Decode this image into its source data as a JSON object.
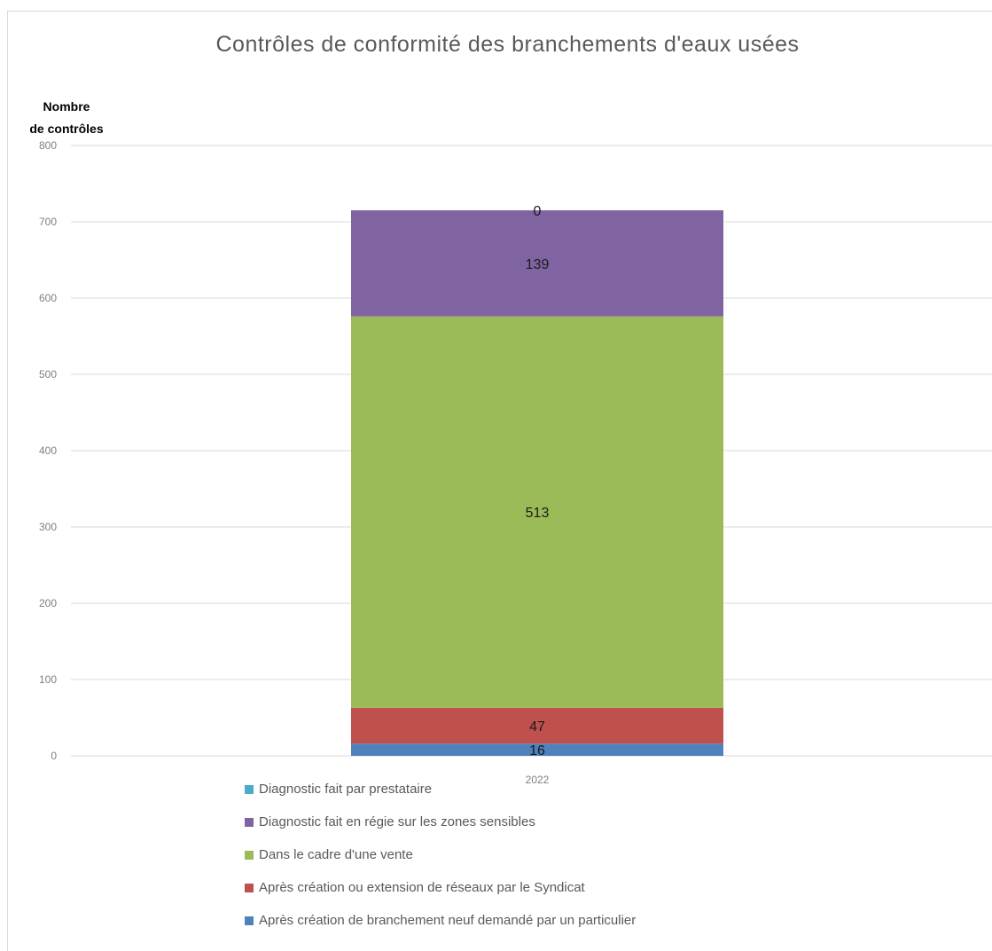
{
  "chart_data": {
    "type": "bar",
    "stacked": true,
    "title": "Contrôles de conformité des branchements d'eaux usées",
    "ylabel": "Nombre\nde contrôles",
    "xlabel": "",
    "categories": [
      "2022"
    ],
    "ylim": [
      0,
      800
    ],
    "yticks": [
      0,
      100,
      200,
      300,
      400,
      500,
      600,
      700,
      800
    ],
    "grid": true,
    "legend_position": "bottom",
    "series": [
      {
        "name": "Après création de branchement neuf demandé par un particulier",
        "values": [
          16
        ],
        "color": "#4f81bd"
      },
      {
        "name": "Après création ou extension de réseaux par le Syndicat",
        "values": [
          47
        ],
        "color": "#c0504d"
      },
      {
        "name": "Dans le cadre d'une vente",
        "values": [
          513
        ],
        "color": "#9bbb59"
      },
      {
        "name": "Diagnostic fait en régie sur les zones sensibles",
        "values": [
          139
        ],
        "color": "#8064a2"
      },
      {
        "name": "Diagnostic fait par prestataire",
        "values": [
          0
        ],
        "color": "#4bacc6"
      }
    ]
  }
}
